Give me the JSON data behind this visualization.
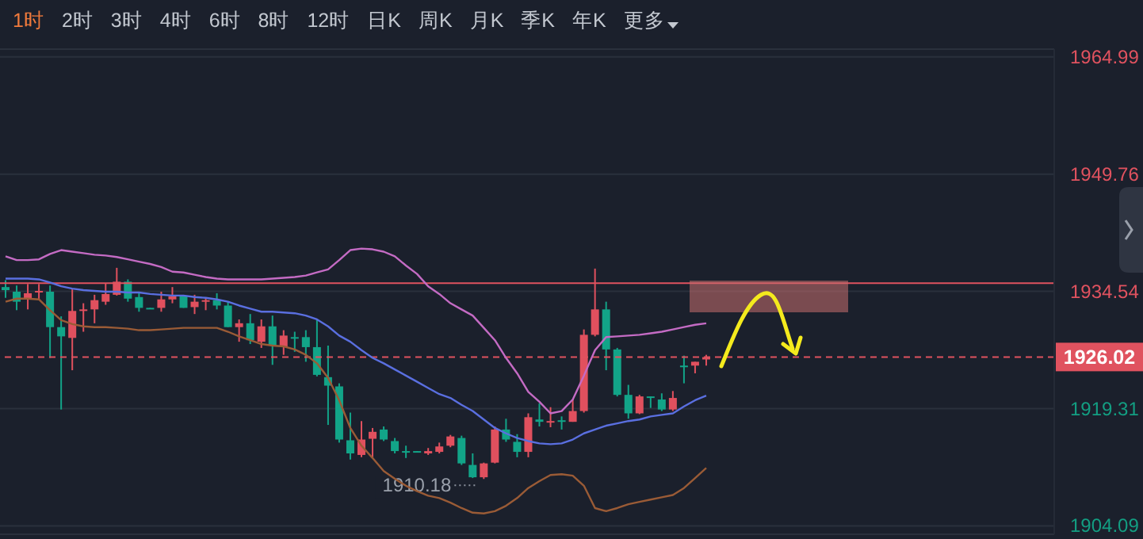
{
  "chart_data": {
    "type": "candlestick",
    "categories": [
      null,
      null,
      null,
      null,
      null,
      null,
      null,
      null,
      null,
      null,
      null,
      null,
      null,
      null,
      null,
      null,
      null,
      null,
      null,
      null,
      null,
      null,
      null,
      null,
      null,
      null,
      null,
      null,
      null,
      null,
      null,
      null,
      null,
      null,
      null,
      null,
      null,
      null,
      null,
      null,
      null,
      null,
      null,
      null,
      null,
      null,
      null,
      null,
      null,
      null,
      null,
      null,
      null,
      null,
      null,
      null,
      null,
      null,
      null,
      null,
      null,
      null,
      null,
      null
    ],
    "ohlc": [
      [
        1935.1,
        1936.0,
        1933.7,
        1934.7
      ],
      [
        1934.5,
        1935.3,
        1932.1,
        1933.2
      ],
      [
        1933.5,
        1935.5,
        1932.2,
        1934.3
      ],
      [
        1934.5,
        1935.5,
        1933.4,
        1934.6
      ],
      [
        1934.5,
        1935.3,
        1925.9,
        1929.9
      ],
      [
        1929.9,
        1931.3,
        1919.2,
        1928.7
      ],
      [
        1928.5,
        1934.8,
        1924.3,
        1932.0
      ],
      [
        1932.0,
        1933.0,
        1929.3,
        1932.2
      ],
      [
        1932.2,
        1934.1,
        1930.4,
        1933.4
      ],
      [
        1933.2,
        1935.6,
        1932.8,
        1934.2
      ],
      [
        1934.1,
        1937.6,
        1934.0,
        1935.8
      ],
      [
        1935.8,
        1936.1,
        1933.2,
        1933.6
      ],
      [
        1933.8,
        1934.5,
        1931.9,
        1932.4
      ],
      [
        1932.4,
        1932.4,
        1932.3,
        1932.3
      ],
      [
        1932.4,
        1934.5,
        1931.9,
        1933.5
      ],
      [
        1933.5,
        1935.1,
        1933.0,
        1933.9
      ],
      [
        1933.9,
        1934.0,
        1932.4,
        1932.4
      ],
      [
        1932.5,
        1934.1,
        1931.6,
        1933.2
      ],
      [
        1933.2,
        1933.7,
        1932.1,
        1933.4
      ],
      [
        1933.4,
        1934.3,
        1932.2,
        1932.7
      ],
      [
        1932.7,
        1933.2,
        1929.9,
        1929.9
      ],
      [
        1929.9,
        1930.9,
        1928.0,
        1930.4
      ],
      [
        1930.4,
        1931.6,
        1927.7,
        1928.2
      ],
      [
        1928.0,
        1930.9,
        1927.2,
        1930.0
      ],
      [
        1930.0,
        1931.4,
        1925.0,
        1927.5
      ],
      [
        1927.4,
        1929.5,
        1926.3,
        1928.8
      ],
      [
        1928.6,
        1929.3,
        1926.7,
        1928.5
      ],
      [
        1928.6,
        1929.5,
        1925.4,
        1927.3
      ],
      [
        1927.3,
        1930.9,
        1923.5,
        1923.7
      ],
      [
        1923.4,
        1927.5,
        1917.2,
        1922.3
      ],
      [
        1922.2,
        1922.6,
        1914.9,
        1915.3
      ],
      [
        1915.2,
        1918.8,
        1912.7,
        1913.5
      ],
      [
        1913.3,
        1917.7,
        1913.0,
        1915.3
      ],
      [
        1915.4,
        1916.8,
        1912.9,
        1916.3
      ],
      [
        1916.6,
        1917.0,
        1915.1,
        1915.3
      ],
      [
        1915.1,
        1915.5,
        1913.5,
        1913.8
      ],
      [
        1913.8,
        1914.5,
        1912.9,
        1913.6
      ],
      [
        1913.8,
        1913.8,
        1913.7,
        1913.7
      ],
      [
        1913.5,
        1914.2,
        1913.3,
        1913.8
      ],
      [
        1913.7,
        1914.9,
        1913.5,
        1914.4
      ],
      [
        1914.5,
        1915.9,
        1914.3,
        1915.7
      ],
      [
        1915.5,
        1915.8,
        1912.0,
        1912.2
      ],
      [
        1912.0,
        1913.5,
        1910.3,
        1910.4
      ],
      [
        1910.4,
        1912.3,
        1910.18,
        1912.2
      ],
      [
        1912.3,
        1917.0,
        1912.2,
        1916.6
      ],
      [
        1916.6,
        1918.0,
        1915.0,
        1915.3
      ],
      [
        1915.0,
        1916.0,
        1913.0,
        1913.7
      ],
      [
        1913.7,
        1918.7,
        1913.0,
        1918.2
      ],
      [
        1917.9,
        1920.0,
        1917.0,
        1917.6
      ],
      [
        1917.6,
        1919.5,
        1916.9,
        1917.7
      ],
      [
        1917.8,
        1918.3,
        1916.6,
        1917.7
      ],
      [
        1917.6,
        1920.5,
        1917.6,
        1919.0
      ],
      [
        1919.0,
        1929.6,
        1918.8,
        1928.9
      ],
      [
        1928.9,
        1937.5,
        1928.7,
        1932.2
      ],
      [
        1932.2,
        1933.2,
        1924.3,
        1927.0
      ],
      [
        1927.0,
        1927.2,
        1920.9,
        1921.1
      ],
      [
        1921.1,
        1922.4,
        1918.0,
        1918.7
      ],
      [
        1918.7,
        1921.1,
        1918.6,
        1920.9
      ],
      [
        1920.9,
        1920.9,
        1919.4,
        1920.7
      ],
      [
        1920.5,
        1921.3,
        1919.0,
        1919.2
      ],
      [
        1919.2,
        1921.6,
        1919.0,
        1920.7
      ],
      [
        1924.9,
        1926.2,
        1922.6,
        1924.8
      ],
      [
        1924.9,
        1925.4,
        1923.9,
        1925.4
      ],
      [
        1925.7,
        1926.3,
        1924.9,
        1926.0
      ]
    ],
    "colors": [
      "#12a488",
      "#12a488",
      "#e0505e",
      "#e0505e",
      "#12a488",
      "#12a488",
      "#e0505e",
      "#e0505e",
      "#e0505e",
      "#e0505e",
      "#e0505e",
      "#12a488",
      "#12a488",
      "#12a488",
      "#e0505e",
      "#e0505e",
      "#12a488",
      "#e0505e",
      "#e0505e",
      "#12a488",
      "#12a488",
      "#e0505e",
      "#12a488",
      "#e0505e",
      "#12a488",
      "#e0505e",
      "#12a488",
      "#12a488",
      "#12a488",
      "#12a488",
      "#12a488",
      "#12a488",
      "#e0505e",
      "#e0505e",
      "#12a488",
      "#12a488",
      "#12a488",
      "#12a488",
      "#e0505e",
      "#e0505e",
      "#e0505e",
      "#12a488",
      "#12a488",
      "#e0505e",
      "#e0505e",
      "#12a488",
      "#12a488",
      "#e0505e",
      "#12a488",
      "#e0505e",
      "#12a488",
      "#e0505e",
      "#e0505e",
      "#e0505e",
      "#12a488",
      "#12a488",
      "#12a488",
      "#e0505e",
      "#12a488",
      "#12a488",
      "#e0505e",
      "#12a488",
      "#e0505e",
      "#e0505e"
    ],
    "series": [
      {
        "type": "line",
        "color": "#c46bc4",
        "values": [
          1939.1,
          1938.6,
          1938.6,
          1938.7,
          1939.4,
          1939.9,
          1939.7,
          1939.5,
          1939.3,
          1939.2,
          1939.0,
          1938.7,
          1938.4,
          1938.1,
          1937.7,
          1937.1,
          1937.0,
          1936.7,
          1936.4,
          1936.2,
          1936.1,
          1936.1,
          1936.1,
          1936.1,
          1936.2,
          1936.3,
          1936.4,
          1936.6,
          1937.0,
          1937.4,
          1938.6,
          1939.9,
          1940.1,
          1940.0,
          1939.7,
          1939.1,
          1937.9,
          1936.8,
          1935.2,
          1934.2,
          1933.0,
          1932.2,
          1931.4,
          1929.8,
          1928.2,
          1925.9,
          1923.9,
          1921.5,
          1920.2,
          1918.7,
          1919.0,
          1920.5,
          1923.6,
          1926.9,
          1928.6,
          1928.7,
          1928.8,
          1928.9,
          1929.1,
          1929.3,
          1929.6,
          1929.9,
          1930.2,
          1930.4
        ]
      },
      {
        "type": "line",
        "color": "#5a6fe0",
        "values": [
          1936.2,
          1936.2,
          1936.2,
          1936.1,
          1935.7,
          1935.2,
          1934.9,
          1934.7,
          1934.6,
          1934.5,
          1934.5,
          1934.4,
          1934.4,
          1934.2,
          1934.1,
          1934.0,
          1934.0,
          1933.8,
          1933.7,
          1933.5,
          1933.2,
          1932.7,
          1932.3,
          1931.9,
          1931.9,
          1931.8,
          1931.7,
          1931.4,
          1930.9,
          1930.0,
          1928.8,
          1928.0,
          1926.9,
          1925.9,
          1925.2,
          1924.4,
          1923.6,
          1922.8,
          1922.0,
          1921.2,
          1920.7,
          1919.8,
          1919.0,
          1917.9,
          1916.8,
          1916.1,
          1915.5,
          1915.1,
          1914.8,
          1914.7,
          1914.8,
          1915.3,
          1916.1,
          1916.6,
          1917.1,
          1917.4,
          1917.7,
          1917.9,
          1918.3,
          1918.5,
          1918.7,
          1919.6,
          1920.4,
          1921.0
        ]
      },
      {
        "type": "line",
        "color": "#9a5b36",
        "values": [
          1933.2,
          1933.6,
          1933.6,
          1933.5,
          1932.1,
          1930.8,
          1930.3,
          1930.0,
          1929.9,
          1929.9,
          1929.8,
          1929.7,
          1929.5,
          1929.5,
          1929.6,
          1929.7,
          1929.8,
          1929.8,
          1929.8,
          1929.8,
          1929.3,
          1928.7,
          1928.2,
          1927.7,
          1927.5,
          1927.4,
          1927.0,
          1926.3,
          1925.2,
          1923.3,
          1920.4,
          1916.8,
          1914.5,
          1912.9,
          1911.2,
          1910.2,
          1909.3,
          1908.6,
          1908.0,
          1907.7,
          1907.1,
          1906.4,
          1905.8,
          1905.7,
          1906.0,
          1906.7,
          1907.7,
          1909.0,
          1909.9,
          1910.7,
          1910.8,
          1910.6,
          1909.3,
          1906.4,
          1906.0,
          1906.4,
          1906.9,
          1907.2,
          1907.5,
          1907.8,
          1908.1,
          1909.0,
          1910.3,
          1911.6
        ]
      }
    ],
    "ylim": [
      1903,
      1966
    ],
    "yticks": [
      1904.09,
      1919.31,
      1934.54,
      1949.76,
      1964.99
    ],
    "grid": "y",
    "tick_labels": "y",
    "ref_lines": [
      {
        "axis": "y",
        "value": 1935.6,
        "color": "#e0525f",
        "line_style": "solid"
      },
      {
        "axis": "y",
        "value": 1926.02,
        "label": "1926.02",
        "color": "#e0525f",
        "line_style": "dashed"
      }
    ],
    "annotations": [
      "1910.18",
      "1时",
      "2时",
      "3时",
      "4时",
      "6时",
      "8时",
      "12时",
      "日K",
      "周K",
      "月K",
      "季K",
      "年K",
      "更多"
    ]
  }
}
